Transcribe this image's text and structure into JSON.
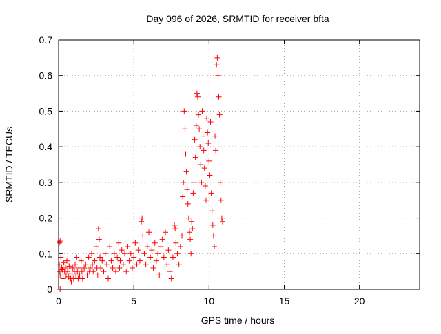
{
  "chart_data": {
    "type": "scatter",
    "title": "Day 096 of 2026, SRMTID for receiver bfta",
    "xlabel": "GPS time / hours",
    "ylabel": "SRMTID / TECUs",
    "xlim": [
      0,
      24
    ],
    "ylim": [
      0,
      0.7
    ],
    "x_ticks": [
      0,
      5,
      10,
      15,
      20
    ],
    "x_tick_labels": [
      "0",
      "5",
      "10",
      "15",
      "20"
    ],
    "y_ticks": [
      0,
      0.1,
      0.2,
      0.3,
      0.4,
      0.5,
      0.6,
      0.7
    ],
    "y_tick_labels": [
      "0",
      "0.1",
      "0.2",
      "0.3",
      "0.4",
      "0.5",
      "0.6",
      "0.7"
    ],
    "grid": true,
    "marker": "+",
    "series": [
      {
        "name": "SRMTID",
        "color": "#ff0000",
        "points": [
          [
            0.05,
            0.13
          ],
          [
            0.05,
            0.07
          ],
          [
            0.08,
            0.05
          ],
          [
            0.1,
            0.135
          ],
          [
            0.1,
            0.04
          ],
          [
            0.1,
            0.0
          ],
          [
            0.15,
            0.09
          ],
          [
            0.2,
            0.06
          ],
          [
            0.25,
            0.055
          ],
          [
            0.3,
            0.03
          ],
          [
            0.35,
            0.075
          ],
          [
            0.4,
            0.05
          ],
          [
            0.45,
            0.06
          ],
          [
            0.5,
            0.04
          ],
          [
            0.55,
            0.08
          ],
          [
            0.6,
            0.05
          ],
          [
            0.65,
            0.035
          ],
          [
            0.7,
            0.065
          ],
          [
            0.75,
            0.045
          ],
          [
            0.8,
            0.03
          ],
          [
            0.85,
            0.02
          ],
          [
            0.9,
            0.04
          ],
          [
            0.95,
            0.06
          ],
          [
            1.0,
            0.03
          ],
          [
            1.05,
            0.05
          ],
          [
            1.1,
            0.07
          ],
          [
            1.15,
            0.04
          ],
          [
            1.2,
            0.09
          ],
          [
            1.25,
            0.05
          ],
          [
            1.3,
            0.03
          ],
          [
            1.35,
            0.06
          ],
          [
            1.4,
            0.04
          ],
          [
            1.5,
            0.08
          ],
          [
            1.55,
            0.05
          ],
          [
            1.6,
            0.03
          ],
          [
            1.7,
            0.06
          ],
          [
            1.8,
            0.07
          ],
          [
            1.9,
            0.04
          ],
          [
            2.0,
            0.09
          ],
          [
            2.05,
            0.05
          ],
          [
            2.1,
            0.06
          ],
          [
            2.2,
            0.1
          ],
          [
            2.25,
            0.07
          ],
          [
            2.3,
            0.05
          ],
          [
            2.4,
            0.08
          ],
          [
            2.5,
            0.12
          ],
          [
            2.55,
            0.06
          ],
          [
            2.6,
            0.04
          ],
          [
            2.65,
            0.17
          ],
          [
            2.7,
            0.14
          ],
          [
            2.75,
            0.09
          ],
          [
            2.8,
            0.06
          ],
          [
            2.9,
            0.08
          ],
          [
            3.0,
            0.05
          ],
          [
            3.1,
            0.1
          ],
          [
            3.2,
            0.07
          ],
          [
            3.3,
            0.03
          ],
          [
            3.4,
            0.12
          ],
          [
            3.5,
            0.08
          ],
          [
            3.6,
            0.06
          ],
          [
            3.7,
            0.1
          ],
          [
            3.8,
            0.05
          ],
          [
            3.9,
            0.09
          ],
          [
            4.0,
            0.13
          ],
          [
            4.05,
            0.06
          ],
          [
            4.1,
            0.08
          ],
          [
            4.2,
            0.11
          ],
          [
            4.3,
            0.07
          ],
          [
            4.4,
            0.1
          ],
          [
            4.5,
            0.05
          ],
          [
            4.6,
            0.12
          ],
          [
            4.7,
            0.08
          ],
          [
            4.8,
            0.1
          ],
          [
            4.9,
            0.06
          ],
          [
            5.0,
            0.09
          ],
          [
            5.1,
            0.13
          ],
          [
            5.2,
            0.07
          ],
          [
            5.3,
            0.11
          ],
          [
            5.4,
            0.08
          ],
          [
            5.5,
            0.19
          ],
          [
            5.55,
            0.2
          ],
          [
            5.6,
            0.15
          ],
          [
            5.7,
            0.1
          ],
          [
            5.8,
            0.07
          ],
          [
            5.9,
            0.12
          ],
          [
            6.0,
            0.16
          ],
          [
            6.1,
            0.09
          ],
          [
            6.2,
            0.11
          ],
          [
            6.3,
            0.06
          ],
          [
            6.4,
            0.13
          ],
          [
            6.5,
            0.08
          ],
          [
            6.6,
            0.1
          ],
          [
            6.7,
            0.04
          ],
          [
            6.8,
            0.12
          ],
          [
            6.9,
            0.14
          ],
          [
            7.0,
            0.09
          ],
          [
            7.1,
            0.16
          ],
          [
            7.2,
            0.07
          ],
          [
            7.3,
            0.11
          ],
          [
            7.4,
            0.05
          ],
          [
            7.5,
            0.03
          ],
          [
            7.6,
            0.09
          ],
          [
            7.7,
            0.18
          ],
          [
            7.75,
            0.17
          ],
          [
            7.8,
            0.13
          ],
          [
            7.9,
            0.1
          ],
          [
            8.0,
            0.07
          ],
          [
            8.1,
            0.12
          ],
          [
            8.2,
            0.15
          ],
          [
            8.25,
            0.26
          ],
          [
            8.3,
            0.3
          ],
          [
            8.35,
            0.5
          ],
          [
            8.4,
            0.45
          ],
          [
            8.45,
            0.38
          ],
          [
            8.5,
            0.33
          ],
          [
            8.55,
            0.28
          ],
          [
            8.6,
            0.24
          ],
          [
            8.65,
            0.2
          ],
          [
            8.7,
            0.16
          ],
          [
            8.75,
            0.14
          ],
          [
            8.8,
            0.1
          ],
          [
            8.85,
            0.19
          ],
          [
            8.9,
            0.17
          ],
          [
            8.95,
            0.27
          ],
          [
            9.0,
            0.3
          ],
          [
            9.05,
            0.42
          ],
          [
            9.1,
            0.37
          ],
          [
            9.15,
            0.46
          ],
          [
            9.2,
            0.55
          ],
          [
            9.25,
            0.54
          ],
          [
            9.3,
            0.49
          ],
          [
            9.35,
            0.45
          ],
          [
            9.4,
            0.4
          ],
          [
            9.45,
            0.35
          ],
          [
            9.5,
            0.3
          ],
          [
            9.55,
            0.5
          ],
          [
            9.6,
            0.43
          ],
          [
            9.65,
            0.39
          ],
          [
            9.7,
            0.34
          ],
          [
            9.75,
            0.29
          ],
          [
            9.8,
            0.25
          ],
          [
            9.85,
            0.48
          ],
          [
            9.9,
            0.44
          ],
          [
            9.95,
            0.41
          ],
          [
            10.0,
            0.36
          ],
          [
            10.05,
            0.32
          ],
          [
            10.1,
            0.47
          ],
          [
            10.15,
            0.27
          ],
          [
            10.2,
            0.22
          ],
          [
            10.25,
            0.18
          ],
          [
            10.3,
            0.15
          ],
          [
            10.35,
            0.12
          ],
          [
            10.4,
            0.43
          ],
          [
            10.45,
            0.39
          ],
          [
            10.5,
            0.63
          ],
          [
            10.55,
            0.65
          ],
          [
            10.6,
            0.6
          ],
          [
            10.65,
            0.54
          ],
          [
            10.7,
            0.49
          ],
          [
            10.75,
            0.3
          ],
          [
            10.8,
            0.25
          ],
          [
            10.85,
            0.2
          ],
          [
            10.9,
            0.19
          ]
        ]
      }
    ]
  }
}
